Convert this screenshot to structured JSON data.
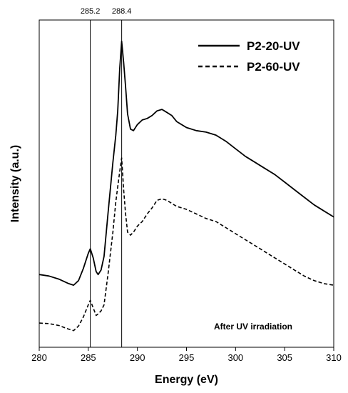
{
  "chart_data": {
    "type": "line",
    "xlabel": "Energy (eV)",
    "ylabel": "Intensity (a.u.)",
    "xlim": [
      280,
      310
    ],
    "x_ticks": [
      "280",
      "285",
      "290",
      "295",
      "300",
      "305",
      "310"
    ],
    "y_ticks": "none",
    "grid": false,
    "legend": {
      "placement": "top-right"
    },
    "annotation": "After UV irradiation",
    "reference_lines": [
      {
        "x": 285.2,
        "label": "285.2"
      },
      {
        "x": 288.4,
        "label": "288.4"
      }
    ],
    "series": [
      {
        "name": "P2-20-UV",
        "line_style": "solid",
        "color": "#000000",
        "x": [
          280,
          281,
          282,
          283,
          283.5,
          284,
          284.5,
          285,
          285.2,
          285.5,
          285.8,
          286,
          286.3,
          286.6,
          287,
          287.5,
          287.8,
          288,
          288.2,
          288.4,
          288.6,
          288.8,
          289,
          289.3,
          289.6,
          290,
          290.5,
          291,
          291.5,
          292,
          292.5,
          293,
          293.5,
          294,
          295,
          296,
          297,
          298,
          299,
          300,
          301,
          302,
          303,
          304,
          305,
          306,
          307,
          308,
          309,
          310
        ],
        "y": [
          0.16,
          0.155,
          0.145,
          0.13,
          0.125,
          0.14,
          0.18,
          0.23,
          0.245,
          0.215,
          0.17,
          0.16,
          0.175,
          0.22,
          0.36,
          0.53,
          0.62,
          0.7,
          0.84,
          0.93,
          0.86,
          0.78,
          0.69,
          0.64,
          0.635,
          0.655,
          0.67,
          0.675,
          0.685,
          0.7,
          0.705,
          0.695,
          0.685,
          0.665,
          0.645,
          0.635,
          0.63,
          0.62,
          0.6,
          0.575,
          0.55,
          0.53,
          0.51,
          0.49,
          0.465,
          0.44,
          0.415,
          0.39,
          0.37,
          0.35
        ]
      },
      {
        "name": "P2-60-UV",
        "line_style": "dashed",
        "color": "#000000",
        "x": [
          280,
          281,
          282,
          283,
          283.5,
          284,
          284.5,
          285,
          285.2,
          285.5,
          285.8,
          286,
          286.3,
          286.6,
          287,
          287.5,
          287.8,
          288,
          288.2,
          288.4,
          288.6,
          288.8,
          289,
          289.3,
          289.6,
          290,
          290.5,
          291,
          291.5,
          292,
          292.5,
          293,
          293.5,
          294,
          295,
          296,
          297,
          298,
          299,
          300,
          301,
          302,
          303,
          304,
          305,
          306,
          307,
          308,
          309,
          310
        ],
        "y": [
          0.0,
          -0.002,
          -0.008,
          -0.02,
          -0.025,
          -0.01,
          0.02,
          0.06,
          0.075,
          0.05,
          0.025,
          0.03,
          0.04,
          0.06,
          0.16,
          0.3,
          0.4,
          0.45,
          0.5,
          0.545,
          0.44,
          0.36,
          0.3,
          0.29,
          0.3,
          0.32,
          0.335,
          0.36,
          0.38,
          0.405,
          0.41,
          0.405,
          0.395,
          0.385,
          0.375,
          0.36,
          0.345,
          0.335,
          0.315,
          0.295,
          0.275,
          0.255,
          0.235,
          0.215,
          0.195,
          0.175,
          0.155,
          0.14,
          0.13,
          0.125
        ]
      }
    ]
  }
}
